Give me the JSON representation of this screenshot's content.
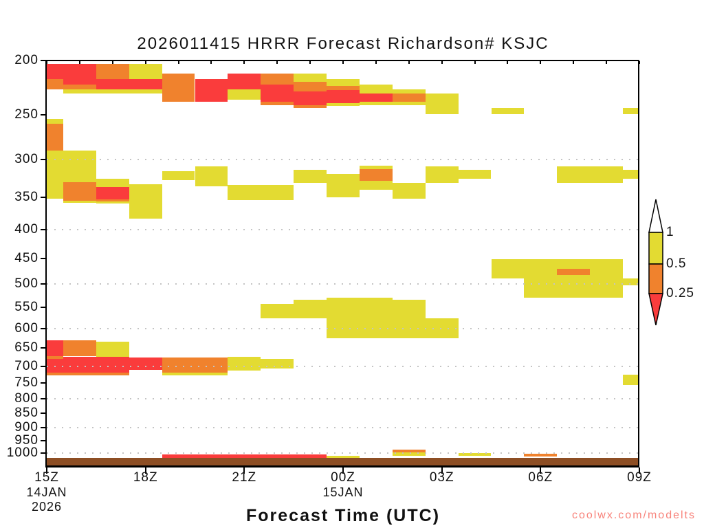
{
  "page": {
    "title": "2026011415 HRRR Forecast Richardson# KSJC",
    "x_axis_title": "Forecast Time (UTC)",
    "watermark": "coolwx.com/modelts"
  },
  "colors": {
    "red": "#fa3c3c",
    "orange": "#f0822d",
    "yellow": "#e3db32",
    "terrain": "#8d4e24",
    "watermark": "#f8837b",
    "axis": "#111111",
    "grid_dots": "#c4c4c4"
  },
  "colorbar": {
    "boundary_labels": [
      "1",
      "0.5",
      "0.25"
    ],
    "segments_top_to_bottom": [
      "white",
      "yellow",
      "orange",
      "red"
    ],
    "meaning": "Richardson number: red < 0.25, orange 0.25 to 0.5, yellow 0.5 to 1, white > 1"
  },
  "chart_data": {
    "type": "heatmap",
    "title": "2026011415 HRRR Forecast Richardson# KSJC",
    "xlabel": "Forecast Time (UTC)",
    "station": "KSJC",
    "model_run": "2026011415 HRRR",
    "x_axis": {
      "unit": "forecast valid time, hours after 15Z 14JAN2026",
      "range_hours": [
        0,
        18
      ],
      "ticks": [
        {
          "t": 0,
          "label": "15Z",
          "sublabels": [
            "14JAN",
            "2026"
          ]
        },
        {
          "t": 3,
          "label": "18Z",
          "sublabels": []
        },
        {
          "t": 6,
          "label": "21Z",
          "sublabels": []
        },
        {
          "t": 9,
          "label": "00Z",
          "sublabels": [
            "15JAN"
          ]
        },
        {
          "t": 12,
          "label": "03Z",
          "sublabels": []
        },
        {
          "t": 15,
          "label": "06Z",
          "sublabels": []
        },
        {
          "t": 18,
          "label": "09Z",
          "sublabels": []
        }
      ],
      "minor_tick_every_hours": 1
    },
    "y_axis": {
      "unit": "hPa",
      "scale": "log",
      "range": [
        200,
        1055
      ],
      "tick_labels": [
        200,
        250,
        300,
        350,
        400,
        450,
        500,
        550,
        600,
        650,
        700,
        750,
        800,
        850,
        900,
        950,
        1000
      ],
      "gridline_levels": [
        300,
        400,
        500,
        600,
        700,
        800,
        900,
        1000
      ]
    },
    "value_bins": {
      "r": "Ri < 0.25",
      "o": "0.25 <= Ri < 0.5",
      "y": "0.5 <= Ri < 1",
      "white": "Ri >= 1"
    },
    "cell_format": "[hourStart, hourEnd, pressureTop_hPa, pressureBottom_hPa, colorKey] ; hours are cell indices 0=15Z..18=09Z, cells centered on the hour; later entries paint over earlier ones",
    "cells": [
      [
        0,
        1,
        203,
        216,
        "r"
      ],
      [
        2,
        2,
        203,
        216,
        "o"
      ],
      [
        3,
        3,
        203,
        216,
        "y"
      ],
      [
        1,
        3,
        216,
        225,
        "r"
      ],
      [
        0,
        0,
        216,
        225,
        "o"
      ],
      [
        1,
        1,
        221,
        225,
        "o"
      ],
      [
        1,
        3,
        225,
        229,
        "y"
      ],
      [
        4,
        4,
        211,
        237,
        "o"
      ],
      [
        5,
        5,
        216,
        237,
        "r"
      ],
      [
        6,
        6,
        211,
        225,
        "r"
      ],
      [
        6,
        6,
        225,
        235,
        "y"
      ],
      [
        7,
        7,
        211,
        221,
        "o"
      ],
      [
        7,
        7,
        221,
        237,
        "r"
      ],
      [
        7,
        7,
        237,
        240,
        "o"
      ],
      [
        8,
        8,
        211,
        218,
        "y"
      ],
      [
        8,
        8,
        218,
        227,
        "o"
      ],
      [
        8,
        8,
        227,
        240,
        "r"
      ],
      [
        8,
        8,
        240,
        243,
        "o"
      ],
      [
        9,
        9,
        216,
        222,
        "y"
      ],
      [
        9,
        9,
        222,
        226,
        "o"
      ],
      [
        9,
        9,
        226,
        238,
        "r"
      ],
      [
        9,
        9,
        238,
        241,
        "y"
      ],
      [
        10,
        10,
        221,
        229,
        "y"
      ],
      [
        10,
        10,
        229,
        237,
        "r"
      ],
      [
        10,
        10,
        237,
        240,
        "y"
      ],
      [
        11,
        11,
        225,
        229,
        "y"
      ],
      [
        11,
        11,
        229,
        237,
        "o"
      ],
      [
        11,
        11,
        237,
        240,
        "y"
      ],
      [
        12,
        12,
        229,
        249,
        "y"
      ],
      [
        14,
        14,
        243,
        249,
        "y"
      ],
      [
        18,
        18,
        243,
        249,
        "y"
      ],
      [
        0,
        0,
        254,
        259,
        "y"
      ],
      [
        0,
        0,
        259,
        289,
        "o"
      ],
      [
        0,
        0,
        289,
        352,
        "y"
      ],
      [
        1,
        1,
        289,
        358,
        "y"
      ],
      [
        1,
        1,
        329,
        355,
        "o"
      ],
      [
        2,
        2,
        325,
        359,
        "y"
      ],
      [
        2,
        2,
        336,
        353,
        "r"
      ],
      [
        2,
        2,
        353,
        356,
        "o"
      ],
      [
        3,
        3,
        332,
        382,
        "y"
      ],
      [
        4,
        4,
        315,
        327,
        "y"
      ],
      [
        5,
        5,
        309,
        335,
        "y"
      ],
      [
        6,
        7,
        333,
        354,
        "y"
      ],
      [
        8,
        8,
        313,
        330,
        "y"
      ],
      [
        9,
        9,
        318,
        350,
        "y"
      ],
      [
        10,
        10,
        308,
        340,
        "y"
      ],
      [
        10,
        10,
        312,
        328,
        "o"
      ],
      [
        11,
        11,
        330,
        352,
        "y"
      ],
      [
        12,
        12,
        309,
        330,
        "y"
      ],
      [
        13,
        13,
        313,
        325,
        "y"
      ],
      [
        16,
        17,
        309,
        330,
        "y"
      ],
      [
        18,
        18,
        313,
        325,
        "y"
      ],
      [
        14,
        17,
        451,
        488,
        "y"
      ],
      [
        16,
        16,
        470,
        482,
        "o"
      ],
      [
        15,
        17,
        488,
        528,
        "y"
      ],
      [
        18,
        18,
        488,
        502,
        "y"
      ],
      [
        7,
        7,
        543,
        575,
        "y"
      ],
      [
        8,
        8,
        533,
        575,
        "y"
      ],
      [
        9,
        10,
        528,
        625,
        "y"
      ],
      [
        11,
        11,
        533,
        625,
        "y"
      ],
      [
        12,
        12,
        575,
        625,
        "y"
      ],
      [
        0,
        2,
        673,
        719,
        "r"
      ],
      [
        0,
        0,
        630,
        672,
        "r"
      ],
      [
        0,
        0,
        671,
        679,
        "o"
      ],
      [
        1,
        1,
        630,
        673,
        "o"
      ],
      [
        2,
        2,
        634,
        673,
        "y"
      ],
      [
        0,
        2,
        719,
        727,
        "o"
      ],
      [
        3,
        3,
        676,
        712,
        "r"
      ],
      [
        4,
        5,
        676,
        719,
        "o"
      ],
      [
        4,
        5,
        719,
        728,
        "y"
      ],
      [
        6,
        6,
        673,
        712,
        "y"
      ],
      [
        7,
        7,
        680,
        708,
        "y"
      ],
      [
        18,
        18,
        725,
        757,
        "y"
      ],
      [
        4,
        8,
        1004,
        1019,
        "r"
      ],
      [
        9,
        9,
        1010,
        1019,
        "y"
      ],
      [
        11,
        11,
        985,
        996,
        "o"
      ],
      [
        11,
        11,
        996,
        1010,
        "y"
      ],
      [
        13,
        13,
        999,
        1010,
        "y"
      ],
      [
        15,
        15,
        1002,
        1013,
        "o"
      ]
    ],
    "terrain": {
      "top_hpa": 1020,
      "color_key": "terrain"
    }
  }
}
